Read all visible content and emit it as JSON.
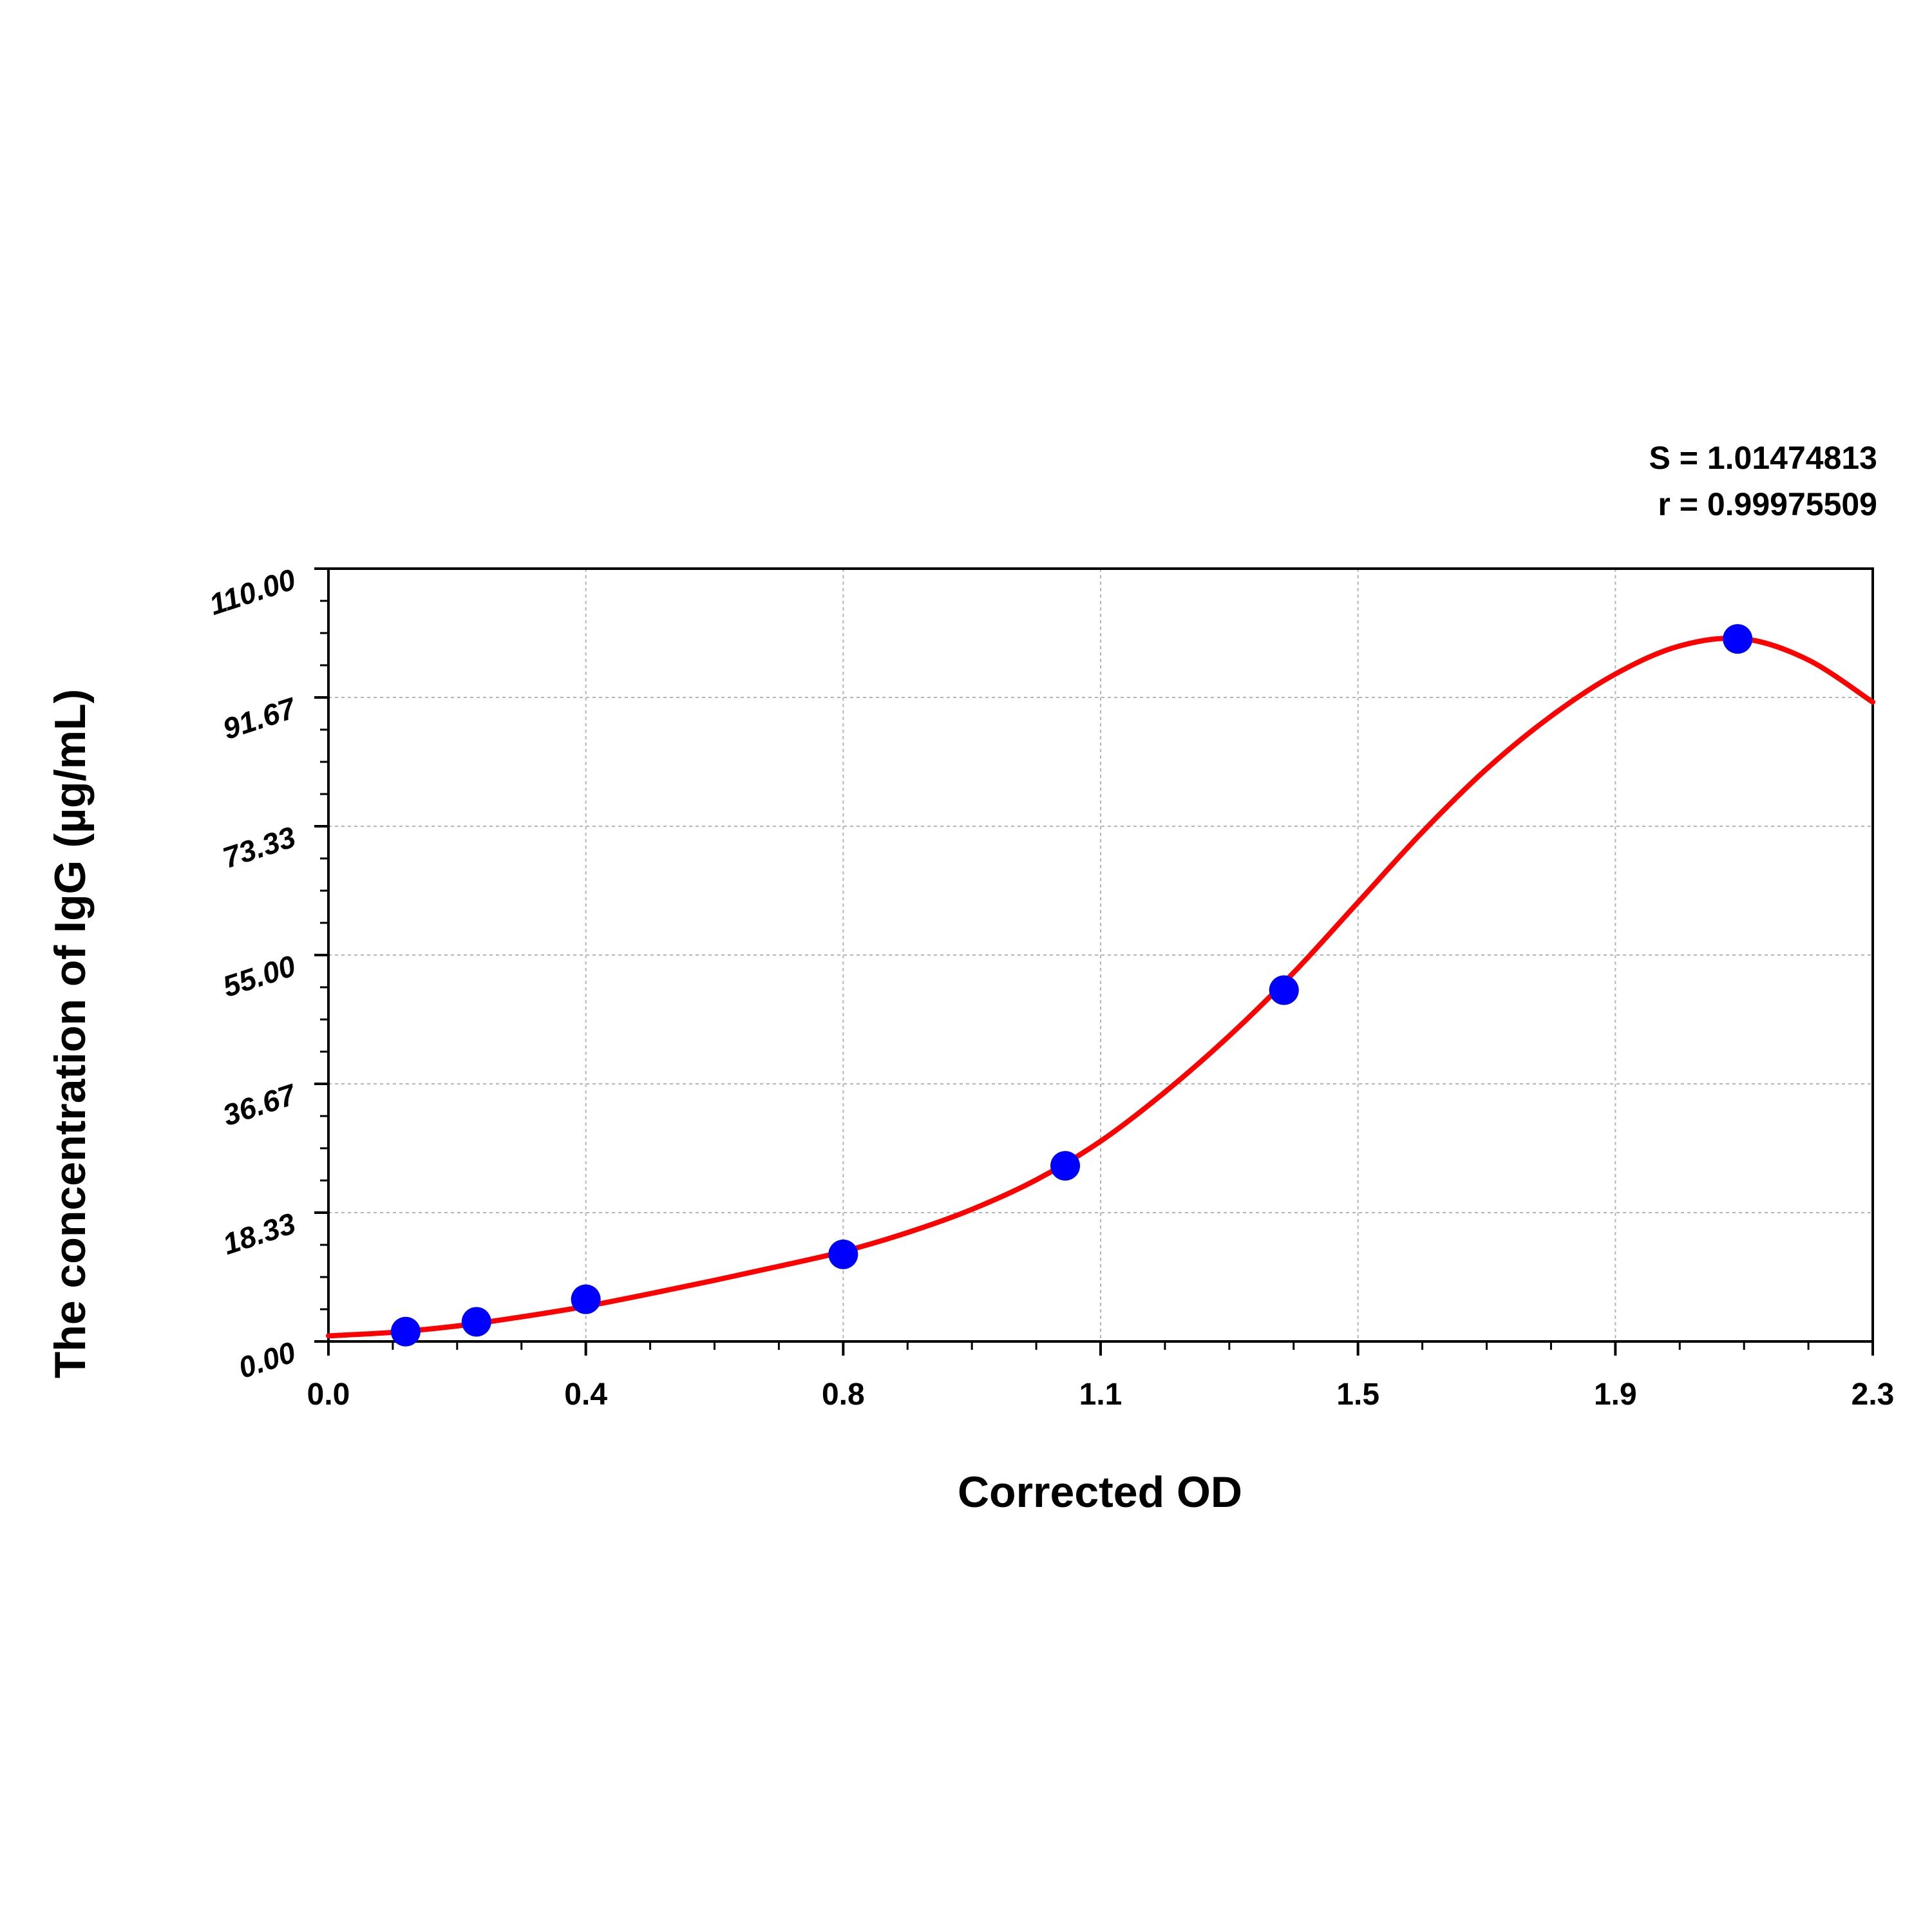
{
  "chart_data": {
    "type": "scatter",
    "title": "",
    "xlabel": "Corrected OD",
    "ylabel": "The concentration of IgG (µg/mL)",
    "xlim": [
      0,
      2.4
    ],
    "ylim": [
      0,
      110
    ],
    "x_ticks": [
      "0.0",
      "0.4",
      "0.8",
      "1.1",
      "1.5",
      "1.9",
      "2.3"
    ],
    "y_ticks": [
      "0.00",
      "18.33",
      "36.67",
      "55.00",
      "73.33",
      "91.67",
      "110.00"
    ],
    "grid": true,
    "stats": [
      "S = 1.01474813",
      "r = 0.99975509"
    ],
    "series": [
      {
        "kind": "points",
        "color": "#0000ff",
        "x": [
          0.12,
          0.23,
          0.4,
          0.8,
          1.145,
          1.485,
          2.19
        ],
        "y": [
          1.4,
          2.8,
          6.0,
          12.4,
          25.0,
          50.0,
          100.0
        ]
      },
      {
        "kind": "fit-curve",
        "color": "#ff0000",
        "x": [
          0.0,
          0.1,
          0.2,
          0.3,
          0.4,
          0.5,
          0.6,
          0.7,
          0.8,
          0.9,
          1.0,
          1.1,
          1.2,
          1.3,
          1.4,
          1.5,
          1.6,
          1.7,
          1.8,
          1.9,
          2.0,
          2.1,
          2.2,
          2.3,
          2.4
        ],
        "y": [
          0.8,
          1.3,
          2.2,
          3.5,
          5.0,
          6.8,
          8.7,
          10.7,
          12.8,
          15.5,
          18.8,
          23.0,
          28.5,
          35.5,
          43.5,
          52.5,
          62.5,
          72.5,
          81.5,
          89.0,
          95.0,
          99.0,
          100.0,
          97.0,
          91.0
        ]
      }
    ]
  }
}
